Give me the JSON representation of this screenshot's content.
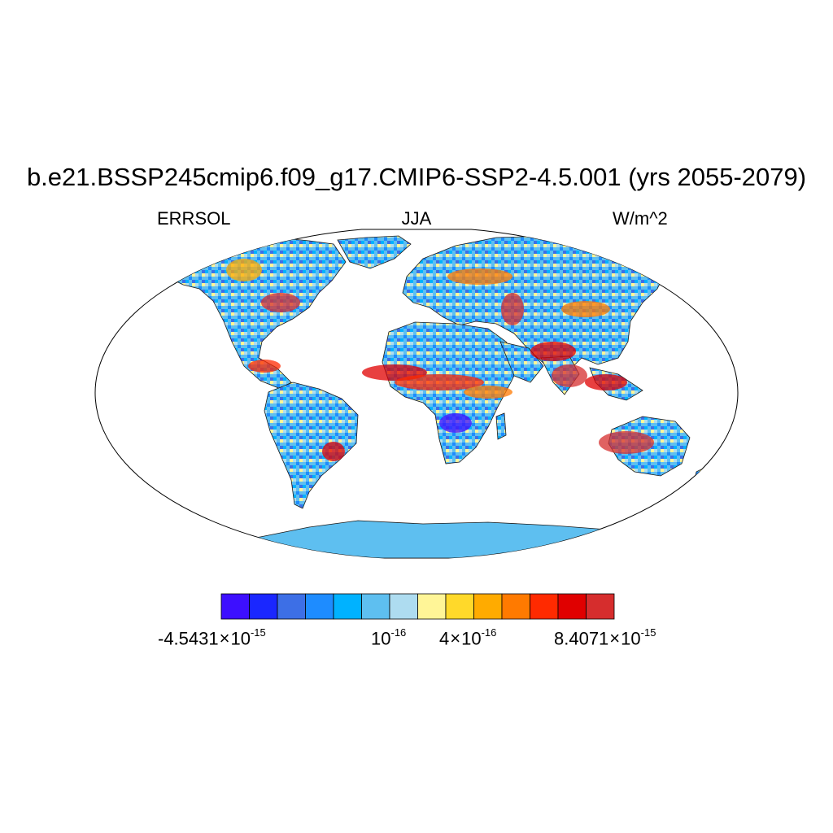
{
  "title": "b.e21.BSSP245cmip6.f09_g17.CMIP6-SSP2-4.5.001 (yrs 2055-2079)",
  "variable": "ERRSOL",
  "season": "JJA",
  "units": "W/m^2",
  "projection": "Robinson",
  "colorbar": {
    "colors": [
      "#3d0fff",
      "#1a27ff",
      "#3d6fe6",
      "#1e8cff",
      "#00b2ff",
      "#5ebff0",
      "#aedcf0",
      "#fff597",
      "#ffd92a",
      "#ffab00",
      "#ff7a00",
      "#ff2a00",
      "#e00000",
      "#d62d2d"
    ],
    "labels": [
      {
        "mantissa": "-4.5431",
        "times": "×",
        "base": "10",
        "exp": "-15"
      },
      {
        "mantissa": "",
        "times": "",
        "base": "10",
        "exp": "-16"
      },
      {
        "mantissa": "4",
        "times": "×",
        "base": "10",
        "exp": "-16"
      },
      {
        "mantissa": "8.4071",
        "times": "×",
        "base": "10",
        "exp": "-15"
      }
    ]
  }
}
